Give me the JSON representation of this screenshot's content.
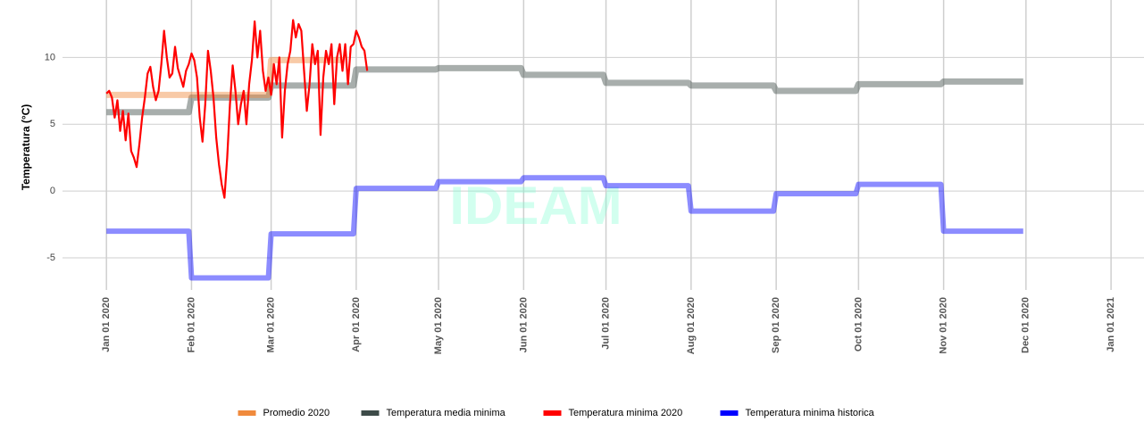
{
  "chart_data": {
    "type": "line",
    "y_label": "Temperatura (°C)",
    "watermark": "IDEAM",
    "xlim": [
      "2019-12-16",
      "2021-01-13"
    ],
    "xticks": [
      {
        "value": "2020-01-01",
        "label": "Jan 01 2020"
      },
      {
        "value": "2020-02-01",
        "label": "Feb 01 2020"
      },
      {
        "value": "2020-03-01",
        "label": "Mar 01 2020"
      },
      {
        "value": "2020-04-01",
        "label": "Apr 01 2020"
      },
      {
        "value": "2020-05-01",
        "label": "May 01 2020"
      },
      {
        "value": "2020-06-01",
        "label": "Jun 01 2020"
      },
      {
        "value": "2020-07-01",
        "label": "Jul 01 2020"
      },
      {
        "value": "2020-08-01",
        "label": "Aug 01 2020"
      },
      {
        "value": "2020-09-01",
        "label": "Sep 01 2020"
      },
      {
        "value": "2020-10-01",
        "label": "Oct 01 2020"
      },
      {
        "value": "2020-11-01",
        "label": "Nov 01 2020"
      },
      {
        "value": "2020-12-01",
        "label": "Dec 01 2020"
      },
      {
        "value": "2021-01-01",
        "label": "Jan 01 2021"
      }
    ],
    "ylim": [
      -7.4,
      14.3
    ],
    "yticks": [
      -5,
      0,
      5,
      10
    ],
    "grid": true,
    "legend": "bottom",
    "series": [
      {
        "name": "Temperatura media minima",
        "color": "#3d4b48",
        "alpha": 0.45,
        "width": 7,
        "x": [
          "2020-01-01",
          "2020-01-31",
          "2020-02-01",
          "2020-02-29",
          "2020-03-01",
          "2020-03-31",
          "2020-04-01",
          "2020-04-30",
          "2020-05-01",
          "2020-05-31",
          "2020-06-01",
          "2020-06-30",
          "2020-07-01",
          "2020-07-31",
          "2020-08-01",
          "2020-08-31",
          "2020-09-01",
          "2020-09-30",
          "2020-10-01",
          "2020-10-31",
          "2020-11-01",
          "2020-11-30"
        ],
        "values": [
          5.9,
          5.9,
          7.0,
          7.0,
          7.9,
          7.9,
          9.1,
          9.1,
          9.2,
          9.2,
          8.7,
          8.7,
          8.1,
          8.1,
          7.9,
          7.9,
          7.5,
          7.5,
          8.0,
          8.0,
          8.2,
          8.2
        ]
      },
      {
        "name": "Promedio 2020",
        "color": "#f08a3c",
        "alpha": 0.45,
        "width": 7,
        "x": [
          "2020-01-01",
          "2020-01-31",
          "2020-02-01",
          "2020-02-29",
          "2020-03-01",
          "2020-03-27"
        ],
        "values": [
          7.2,
          7.2,
          7.2,
          7.2,
          9.8,
          9.8
        ]
      },
      {
        "name": "Temperatura minima historica",
        "color": "#0000ff",
        "alpha": 0.45,
        "width": 6,
        "x": [
          "2020-01-01",
          "2020-01-31",
          "2020-02-01",
          "2020-02-29",
          "2020-03-01",
          "2020-03-31",
          "2020-04-01",
          "2020-04-30",
          "2020-05-01",
          "2020-05-31",
          "2020-06-01",
          "2020-06-30",
          "2020-07-01",
          "2020-07-31",
          "2020-08-01",
          "2020-08-31",
          "2020-09-01",
          "2020-09-30",
          "2020-10-01",
          "2020-10-31",
          "2020-11-01",
          "2020-11-30"
        ],
        "values": [
          -3.0,
          -3.0,
          -6.5,
          -6.5,
          -3.2,
          -3.2,
          0.2,
          0.2,
          0.7,
          0.7,
          1.0,
          1.0,
          0.4,
          0.4,
          -1.5,
          -1.5,
          -0.2,
          -0.2,
          0.5,
          0.5,
          -3.0,
          -3.0
        ]
      },
      {
        "name": "Temperatura minima 2020",
        "color": "#ff0000",
        "alpha": 1,
        "width": 2.2,
        "x": [
          "2020-01-01",
          "2020-01-02",
          "2020-01-03",
          "2020-01-04",
          "2020-01-05",
          "2020-01-06",
          "2020-01-07",
          "2020-01-08",
          "2020-01-09",
          "2020-01-10",
          "2020-01-11",
          "2020-01-12",
          "2020-01-13",
          "2020-01-14",
          "2020-01-15",
          "2020-01-16",
          "2020-01-17",
          "2020-01-18",
          "2020-01-19",
          "2020-01-20",
          "2020-01-21",
          "2020-01-22",
          "2020-01-23",
          "2020-01-24",
          "2020-01-25",
          "2020-01-26",
          "2020-01-27",
          "2020-01-28",
          "2020-01-29",
          "2020-01-30",
          "2020-01-31",
          "2020-02-01",
          "2020-02-02",
          "2020-02-03",
          "2020-02-04",
          "2020-02-05",
          "2020-02-06",
          "2020-02-07",
          "2020-02-08",
          "2020-02-09",
          "2020-02-10",
          "2020-02-11",
          "2020-02-12",
          "2020-02-13",
          "2020-02-14",
          "2020-02-15",
          "2020-02-16",
          "2020-02-17",
          "2020-02-18",
          "2020-02-19",
          "2020-02-20",
          "2020-02-21",
          "2020-02-22",
          "2020-02-23",
          "2020-02-24",
          "2020-02-25",
          "2020-02-26",
          "2020-02-27",
          "2020-02-28",
          "2020-02-29",
          "2020-03-01",
          "2020-03-02",
          "2020-03-03",
          "2020-03-04",
          "2020-03-05",
          "2020-03-06",
          "2020-03-07",
          "2020-03-08",
          "2020-03-09",
          "2020-03-10",
          "2020-03-11",
          "2020-03-12",
          "2020-03-13",
          "2020-03-14",
          "2020-03-15",
          "2020-03-16",
          "2020-03-17",
          "2020-03-18",
          "2020-03-19",
          "2020-03-20",
          "2020-03-21",
          "2020-03-22",
          "2020-03-23",
          "2020-03-24",
          "2020-03-25",
          "2020-03-26",
          "2020-03-27",
          "2020-03-28",
          "2020-03-29",
          "2020-03-30",
          "2020-03-31",
          "2020-04-01",
          "2020-04-02",
          "2020-04-03",
          "2020-04-04",
          "2020-04-05"
        ],
        "values": [
          7.3,
          7.5,
          7.0,
          5.5,
          6.8,
          4.5,
          6.0,
          3.8,
          5.8,
          3.0,
          2.5,
          1.8,
          3.5,
          5.5,
          7.0,
          8.8,
          9.3,
          7.8,
          6.8,
          7.5,
          9.5,
          12.0,
          10.0,
          8.5,
          8.8,
          10.8,
          9.2,
          8.5,
          7.8,
          9.0,
          9.5,
          10.3,
          9.8,
          8.5,
          5.5,
          3.7,
          6.5,
          10.5,
          9.0,
          7.0,
          4.0,
          2.0,
          0.5,
          -0.5,
          2.5,
          6.5,
          9.4,
          7.5,
          5.0,
          6.5,
          7.5,
          5.0,
          8.0,
          9.8,
          12.7,
          10.0,
          12.0,
          9.0,
          7.5,
          8.5,
          7.2,
          9.5,
          8.0,
          10.0,
          4.0,
          7.5,
          9.5,
          10.5,
          12.8,
          11.5,
          12.5,
          12.0,
          9.0,
          6.0,
          8.0,
          11.0,
          9.5,
          10.5,
          4.2,
          8.5,
          10.5,
          9.5,
          11.0,
          6.5,
          10.0,
          11.0,
          9.0,
          11.0,
          8.0,
          10.8,
          11.0,
          12.0,
          11.5,
          10.8,
          10.5,
          9.0
        ]
      }
    ],
    "legend_order": [
      1,
      0,
      3,
      2
    ]
  }
}
